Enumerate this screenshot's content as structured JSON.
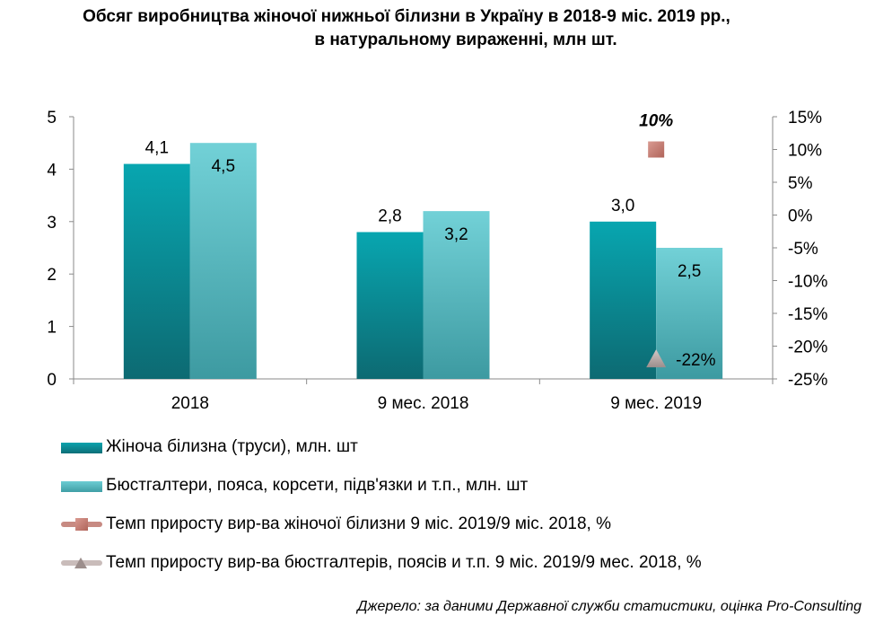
{
  "title_line1": "Обсяг виробництва жіночої нижньої білизни в Україну в 2018-9 міс. 2019 рр.,",
  "title_line2": "в натуральному вираженні, млн шт.",
  "source": "Джерело: за даними Державної служби статистики, оцінка Pro-Consulting",
  "colors": {
    "series1": "#0a8f99",
    "series2": "#5bbcc2",
    "line1_marker": "#c0766c",
    "line2_marker": "#b8aaa8"
  },
  "chart_data": {
    "type": "bar",
    "categories": [
      "2018",
      "9 мес. 2018",
      "9 мес. 2019"
    ],
    "series": [
      {
        "name": "Жіноча білизна (труси), млн. шт",
        "values": [
          4.1,
          2.8,
          3.0
        ],
        "labels": [
          "4,1",
          "2,8",
          "3,0"
        ],
        "axis": "left"
      },
      {
        "name": "Бюстгалтери, пояса, корсети, підв'язки и т.п., млн. шт",
        "values": [
          4.5,
          3.2,
          2.5
        ],
        "labels": [
          "4,5",
          "3,2",
          "2,5"
        ],
        "axis": "left"
      }
    ],
    "line_series": [
      {
        "name": "Темп приросту вир-ва жіночої білизни 9 міс. 2019/9 міс. 2018, %",
        "category": "9 мес. 2019",
        "value": 10,
        "label": "10%",
        "marker": "square",
        "axis": "right"
      },
      {
        "name": "Темп приросту вир-ва бюстгалтерів, поясів и т.п. 9 міс. 2019/9 мес. 2018, %",
        "category": "9 мес. 2019",
        "value": -22,
        "label": "-22%",
        "marker": "triangle",
        "axis": "right"
      }
    ],
    "y_left": {
      "min": 0,
      "max": 5,
      "ticks": [
        "0",
        "1",
        "2",
        "3",
        "4",
        "5"
      ]
    },
    "y_right": {
      "min": -25,
      "max": 15,
      "ticks": [
        "-25%",
        "-20%",
        "-15%",
        "-10%",
        "-5%",
        "0%",
        "5%",
        "10%",
        "15%"
      ]
    },
    "legend_position": "bottom-left",
    "grid": false
  }
}
